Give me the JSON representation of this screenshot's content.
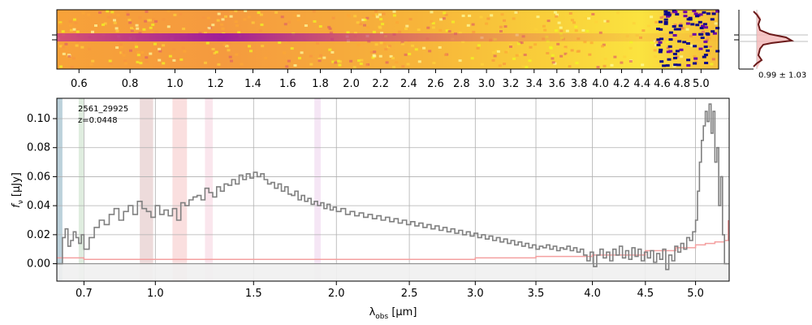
{
  "chart_data": [
    {
      "type": "heatmap",
      "name": "2D spectrum",
      "top_tick_labels": [
        "0.6",
        "0.8",
        "1.0",
        "1.2",
        "1.4",
        "1.6",
        "1.8",
        "2.0",
        "2.2",
        "2.4",
        "2.6",
        "2.8",
        "3.0",
        "3.2",
        "3.4",
        "3.6",
        "3.8",
        "4.0",
        "4.2",
        "4.4",
        "4.6",
        "4.8",
        "5.0"
      ],
      "top_tick_values": [
        0.6,
        0.8,
        1.0,
        1.2,
        1.4,
        1.6,
        1.8,
        2.0,
        2.2,
        2.4,
        2.6,
        2.8,
        3.0,
        3.2,
        3.4,
        3.6,
        3.8,
        4.0,
        4.2,
        4.4,
        4.6,
        4.8,
        5.0
      ],
      "colormap": "plasma"
    },
    {
      "type": "line",
      "name": "spatial profile",
      "annotation": "0.99 ± 1.03"
    },
    {
      "type": "line",
      "name": "1D spectrum",
      "object_id": "2561_29925",
      "redshift_label": "z=0.0448",
      "xlabel_base": "λ",
      "xlabel_sub": "obs",
      "xlabel_unit": " [μm]",
      "ylabel_base": "f",
      "ylabel_sub": "ν",
      "ylabel_unit": " [μJy]",
      "x_tick_values": [
        0.7,
        1.0,
        1.5,
        2.0,
        2.5,
        3.0,
        3.5,
        4.0,
        4.5,
        5.0
      ],
      "x_tick_labels": [
        "0.7",
        "1.0",
        "1.5",
        "2.0",
        "2.5",
        "3.0",
        "3.5",
        "4.0",
        "4.5",
        "5.0"
      ],
      "y_tick_values": [
        0.0,
        0.02,
        0.04,
        0.06,
        0.08,
        0.1
      ],
      "y_tick_labels": [
        "0.00",
        "0.02",
        "0.04",
        "0.06",
        "0.08",
        "0.10"
      ],
      "xlim": [
        0.6,
        5.35
      ],
      "ylim": [
        -0.012,
        0.114
      ],
      "grid": true,
      "series": [
        {
          "name": "flux",
          "color": "#808080",
          "x": [
            0.6,
            0.61,
            0.62,
            0.63,
            0.64,
            0.65,
            0.66,
            0.67,
            0.68,
            0.69,
            0.7,
            0.72,
            0.74,
            0.76,
            0.78,
            0.8,
            0.82,
            0.84,
            0.86,
            0.88,
            0.9,
            0.92,
            0.94,
            0.96,
            0.98,
            1.0,
            1.02,
            1.04,
            1.06,
            1.08,
            1.1,
            1.12,
            1.14,
            1.16,
            1.18,
            1.2,
            1.22,
            1.24,
            1.26,
            1.28,
            1.3,
            1.32,
            1.34,
            1.36,
            1.38,
            1.4,
            1.42,
            1.44,
            1.46,
            1.48,
            1.5,
            1.52,
            1.54,
            1.56,
            1.58,
            1.6,
            1.62,
            1.64,
            1.66,
            1.68,
            1.7,
            1.72,
            1.74,
            1.76,
            1.78,
            1.8,
            1.82,
            1.84,
            1.86,
            1.88,
            1.9,
            1.92,
            1.94,
            1.96,
            1.98,
            2.0,
            2.03,
            2.06,
            2.09,
            2.12,
            2.15,
            2.18,
            2.21,
            2.24,
            2.27,
            2.3,
            2.33,
            2.36,
            2.39,
            2.42,
            2.45,
            2.48,
            2.51,
            2.54,
            2.57,
            2.6,
            2.63,
            2.66,
            2.69,
            2.72,
            2.75,
            2.78,
            2.81,
            2.84,
            2.87,
            2.9,
            2.93,
            2.96,
            2.99,
            3.02,
            3.05,
            3.08,
            3.11,
            3.14,
            3.17,
            3.2,
            3.23,
            3.26,
            3.29,
            3.32,
            3.35,
            3.38,
            3.41,
            3.44,
            3.47,
            3.5,
            3.53,
            3.56,
            3.59,
            3.62,
            3.65,
            3.68,
            3.71,
            3.74,
            3.77,
            3.8,
            3.83,
            3.86,
            3.89,
            3.92,
            3.95,
            3.98,
            4.01,
            4.04,
            4.07,
            4.1,
            4.13,
            4.16,
            4.19,
            4.22,
            4.25,
            4.28,
            4.31,
            4.34,
            4.37,
            4.4,
            4.43,
            4.46,
            4.49,
            4.52,
            4.55,
            4.58,
            4.61,
            4.64,
            4.67,
            4.7,
            4.73,
            4.76,
            4.79,
            4.82,
            4.85,
            4.88,
            4.91,
            4.94,
            4.97,
            5.0,
            5.02,
            5.04,
            5.06,
            5.08,
            5.1,
            5.12,
            5.14,
            5.16,
            5.18,
            5.2,
            5.22,
            5.24,
            5.26,
            5.28,
            5.3,
            5.32,
            5.34
          ],
          "y": [
            0.0,
            0.0,
            0.018,
            0.024,
            0.012,
            0.016,
            0.022,
            0.018,
            0.014,
            0.02,
            0.01,
            0.018,
            0.025,
            0.03,
            0.027,
            0.034,
            0.038,
            0.03,
            0.036,
            0.04,
            0.034,
            0.043,
            0.038,
            0.036,
            0.032,
            0.04,
            0.034,
            0.037,
            0.033,
            0.038,
            0.03,
            0.042,
            0.04,
            0.044,
            0.046,
            0.047,
            0.044,
            0.052,
            0.049,
            0.046,
            0.053,
            0.05,
            0.055,
            0.054,
            0.058,
            0.055,
            0.061,
            0.058,
            0.062,
            0.059,
            0.063,
            0.06,
            0.062,
            0.058,
            0.055,
            0.056,
            0.052,
            0.055,
            0.05,
            0.053,
            0.048,
            0.047,
            0.05,
            0.044,
            0.047,
            0.043,
            0.045,
            0.041,
            0.043,
            0.04,
            0.042,
            0.038,
            0.041,
            0.037,
            0.039,
            0.036,
            0.038,
            0.034,
            0.036,
            0.033,
            0.035,
            0.032,
            0.034,
            0.031,
            0.033,
            0.03,
            0.032,
            0.029,
            0.031,
            0.028,
            0.03,
            0.027,
            0.029,
            0.026,
            0.028,
            0.025,
            0.027,
            0.024,
            0.026,
            0.023,
            0.025,
            0.022,
            0.024,
            0.021,
            0.023,
            0.02,
            0.022,
            0.019,
            0.021,
            0.018,
            0.02,
            0.017,
            0.019,
            0.016,
            0.018,
            0.015,
            0.017,
            0.014,
            0.016,
            0.013,
            0.015,
            0.012,
            0.014,
            0.011,
            0.013,
            0.01,
            0.012,
            0.011,
            0.013,
            0.01,
            0.012,
            0.009,
            0.011,
            0.01,
            0.012,
            0.009,
            0.011,
            0.008,
            0.01,
            0.006,
            0.002,
            0.008,
            -0.002,
            0.006,
            0.01,
            0.004,
            0.008,
            0.002,
            0.01,
            0.006,
            0.012,
            0.004,
            0.009,
            0.003,
            0.011,
            0.005,
            0.01,
            0.002,
            0.008,
            0.004,
            0.009,
            0.001,
            0.007,
            0.003,
            0.01,
            -0.004,
            0.006,
            0.002,
            0.012,
            0.008,
            0.014,
            0.01,
            0.018,
            0.016,
            0.022,
            0.03,
            0.05,
            0.07,
            0.085,
            0.095,
            0.105,
            0.098,
            0.11,
            0.09,
            0.105,
            0.07,
            0.08,
            0.04,
            0.06,
            0.02,
            0.0,
            0.0,
            0.0
          ]
        },
        {
          "name": "error",
          "color": "#f4a0a0",
          "x": [
            0.6,
            0.7,
            0.8,
            0.9,
            1.0,
            1.2,
            1.4,
            1.6,
            1.8,
            2.0,
            2.5,
            3.0,
            3.5,
            4.0,
            4.5,
            4.8,
            5.0,
            5.1,
            5.2,
            5.3,
            5.34
          ],
          "y": [
            0.004,
            0.003,
            0.003,
            0.003,
            0.003,
            0.003,
            0.003,
            0.003,
            0.003,
            0.003,
            0.003,
            0.004,
            0.005,
            0.006,
            0.009,
            0.011,
            0.013,
            0.014,
            0.015,
            0.016,
            0.03
          ]
        }
      ],
      "shaded_bands": [
        {
          "xmin": 0.6,
          "xmax": 0.62,
          "color": "#6a9ab0"
        },
        {
          "xmin": 0.68,
          "xmax": 0.7,
          "color": "#b8d8b8"
        },
        {
          "xmin": 0.93,
          "xmax": 0.99,
          "color": "#d8b0b0"
        },
        {
          "xmin": 1.08,
          "xmax": 1.15,
          "color": "#f4b8b8"
        },
        {
          "xmin": 1.24,
          "xmax": 1.28,
          "color": "#f4c8d8"
        },
        {
          "xmin": 1.86,
          "xmax": 1.9,
          "color": "#e8c8e8"
        }
      ]
    }
  ]
}
